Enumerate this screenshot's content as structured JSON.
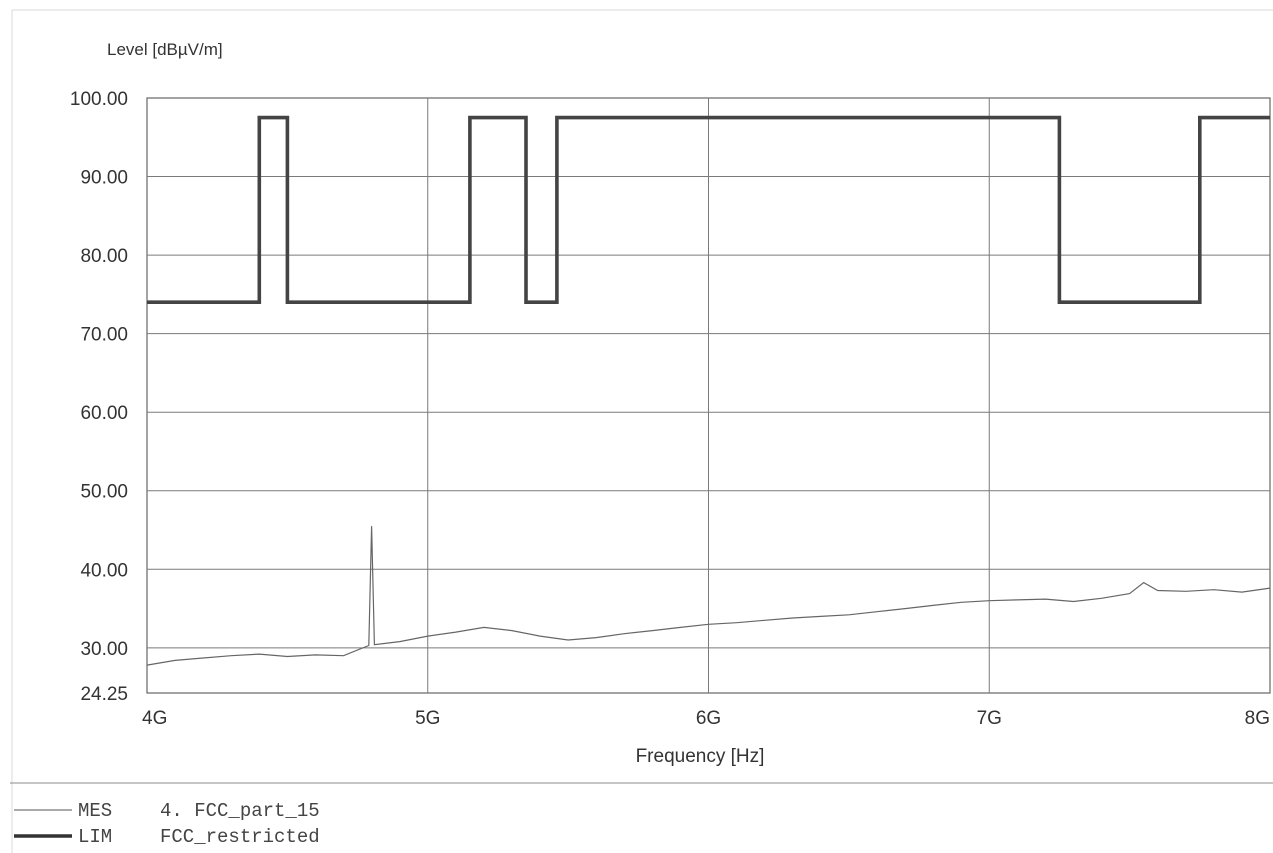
{
  "chart_data": {
    "type": "line",
    "ylabel": "Level [dBµV/m]",
    "xlabel": "Frequency [Hz]",
    "xscale": "linear",
    "xlim": [
      4000000000,
      8000000000
    ],
    "ylim": [
      24.25,
      100
    ],
    "grid": true,
    "y_ticks": [
      {
        "value": 24.25,
        "label": "24.25"
      },
      {
        "value": 30,
        "label": "30.00"
      },
      {
        "value": 40,
        "label": "40.00"
      },
      {
        "value": 50,
        "label": "50.00"
      },
      {
        "value": 60,
        "label": "60.00"
      },
      {
        "value": 70,
        "label": "70.00"
      },
      {
        "value": 80,
        "label": "80.00"
      },
      {
        "value": 90,
        "label": "90.00"
      },
      {
        "value": 100,
        "label": "100.00"
      }
    ],
    "x_ticks": [
      {
        "value": 4000000000,
        "label": "4G"
      },
      {
        "value": 5000000000,
        "label": "5G"
      },
      {
        "value": 6000000000,
        "label": "6G"
      },
      {
        "value": 7000000000,
        "label": "7G"
      },
      {
        "value": 8000000000,
        "label": "8G"
      }
    ],
    "series": [
      {
        "name": "LIM",
        "style": "thick",
        "color": "#444444",
        "x": [
          4000000000,
          4400000000,
          4400000000,
          4500000000,
          4500000000,
          5150000000,
          5150000000,
          5350000000,
          5350000000,
          5460000000,
          5460000000,
          7250000000,
          7250000000,
          7750000000,
          7750000000,
          8000000000
        ],
        "y": [
          74,
          74,
          97.5,
          97.5,
          74,
          74,
          97.5,
          97.5,
          74,
          74,
          97.5,
          97.5,
          74,
          74,
          97.5,
          97.5
        ]
      },
      {
        "name": "MES",
        "style": "thin",
        "color": "#666666",
        "x": [
          4000000000,
          4100000000,
          4200000000,
          4300000000,
          4400000000,
          4500000000,
          4600000000,
          4700000000,
          4790000000,
          4800000000,
          4810000000,
          4900000000,
          5000000000,
          5100000000,
          5200000000,
          5300000000,
          5400000000,
          5500000000,
          5600000000,
          5700000000,
          5800000000,
          5900000000,
          6000000000,
          6100000000,
          6200000000,
          6300000000,
          6400000000,
          6500000000,
          6600000000,
          6700000000,
          6800000000,
          6900000000,
          7000000000,
          7100000000,
          7200000000,
          7300000000,
          7400000000,
          7500000000,
          7550000000,
          7600000000,
          7700000000,
          7800000000,
          7900000000,
          8000000000
        ],
        "y": [
          27.8,
          28.4,
          28.7,
          29.0,
          29.2,
          28.9,
          29.1,
          29.0,
          30.3,
          45.5,
          30.4,
          30.8,
          31.5,
          32.0,
          32.6,
          32.2,
          31.5,
          31.0,
          31.3,
          31.8,
          32.2,
          32.6,
          33.0,
          33.2,
          33.5,
          33.8,
          34.0,
          34.2,
          34.6,
          35.0,
          35.4,
          35.8,
          36.0,
          36.1,
          36.2,
          35.9,
          36.3,
          36.9,
          38.3,
          37.3,
          37.2,
          37.4,
          37.1,
          37.6
        ]
      }
    ],
    "legend": {
      "placement": "bottom-left",
      "entries": [
        {
          "code": "MES",
          "text": "4. FCC_part_15",
          "style": "thin"
        },
        {
          "code": "LIM",
          "text": "FCC_restricted",
          "style": "thick"
        }
      ]
    }
  }
}
